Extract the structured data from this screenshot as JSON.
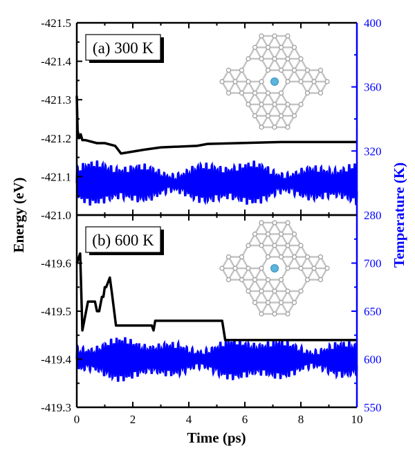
{
  "chart_data": [
    {
      "type": "line",
      "panel_label": "(a) 300 K",
      "xlim": [
        0,
        10
      ],
      "left_axis": {
        "label": "Energy (eV)",
        "ylim": [
          -421.5,
          -421.0
        ],
        "reversed": true,
        "ticks": [
          -421.5,
          -421.4,
          -421.3,
          -421.2,
          -421.1,
          -421.0
        ],
        "tick_labels": [
          "-421.5",
          "-421.4",
          "-421.3",
          "-421.2",
          "-421.1",
          "-421.0"
        ]
      },
      "right_axis": {
        "label": "Temperature (K)",
        "ylim": [
          280,
          400
        ],
        "ticks": [
          280,
          320,
          360,
          400
        ],
        "tick_labels": [
          "280",
          "320",
          "360",
          "400"
        ]
      },
      "series": [
        {
          "name": "Energy",
          "axis": "left",
          "color": "#000000",
          "step": true,
          "x": [
            0,
            0.03,
            0.08,
            0.14,
            0.2,
            0.3,
            0.72,
            1.0,
            1.37,
            1.58,
            2.4,
            3.0,
            4.3,
            4.67,
            7.3,
            10
          ],
          "y": [
            -421.31,
            -421.22,
            -421.2,
            -421.21,
            -421.195,
            -421.195,
            -421.187,
            -421.187,
            -421.18,
            -421.16,
            -421.17,
            -421.176,
            -421.18,
            -421.185,
            -421.19,
            -421.19
          ]
        },
        {
          "name": "Temperature",
          "axis": "right",
          "color": "#0000ff",
          "mean": 300,
          "amplitude": 13,
          "period_ps": 0.1
        }
      ]
    },
    {
      "type": "line",
      "panel_label": "(b) 600 K",
      "xlim": [
        0,
        10
      ],
      "xlabel": "Time (ps)",
      "x_ticks": [
        0,
        2,
        4,
        6,
        8,
        10
      ],
      "x_tick_labels": [
        "0",
        "2",
        "4",
        "6",
        "8",
        "10"
      ],
      "left_axis": {
        "label": "Energy (eV)",
        "ylim": [
          -419.7,
          -419.3
        ],
        "reversed": true,
        "ticks": [
          -419.6,
          -419.5,
          -419.4,
          -419.3
        ],
        "tick_labels": [
          "-419.6",
          "-419.5",
          "-419.4",
          "-419.3"
        ]
      },
      "right_axis": {
        "label": "Temperature (K)",
        "ylim": [
          550,
          750
        ],
        "ticks": [
          550,
          600,
          650,
          700
        ],
        "tick_labels": [
          "550",
          "600",
          "650",
          "700"
        ]
      },
      "series": [
        {
          "name": "Energy",
          "axis": "left",
          "color": "#000000",
          "x": [
            0,
            0.12,
            0.2,
            0.4,
            0.65,
            0.72,
            0.8,
            0.9,
            0.95,
            1.0,
            1.05,
            1.18,
            1.25,
            1.4,
            2.68,
            2.74,
            2.8,
            5.19,
            5.3,
            10
          ],
          "y": [
            -419.6,
            -419.62,
            -419.46,
            -419.52,
            -419.52,
            -419.5,
            -419.5,
            -419.53,
            -419.53,
            -419.55,
            -419.55,
            -419.57,
            -419.54,
            -419.47,
            -419.47,
            -419.46,
            -419.48,
            -419.48,
            -419.44,
            -419.44
          ]
        },
        {
          "name": "Temperature",
          "axis": "right",
          "color": "#0000ff",
          "mean": 600,
          "amplitude": 21,
          "period_ps": 0.1
        }
      ]
    }
  ]
}
